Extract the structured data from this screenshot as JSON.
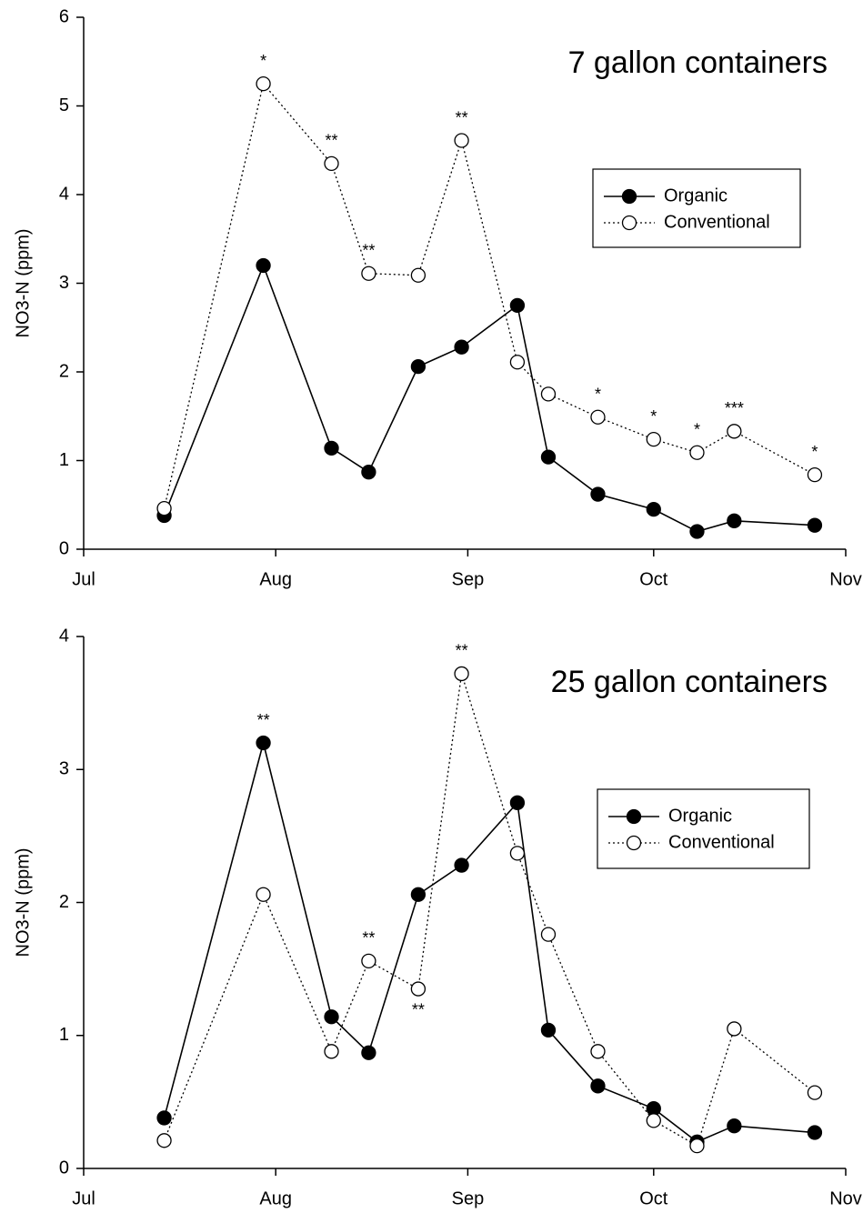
{
  "chart_data": [
    {
      "type": "line",
      "title": "7 gallon containers",
      "ylabel": "NO3-N (ppm)",
      "x": [
        13,
        29,
        40,
        46,
        54,
        61,
        70,
        75,
        83,
        92,
        99,
        105,
        118
      ],
      "series": [
        {
          "name": "Organic",
          "color": "#000000",
          "linestyle": "solid",
          "marker": "filled",
          "values": [
            0.38,
            3.2,
            1.14,
            0.87,
            2.06,
            2.28,
            2.75,
            1.04,
            0.62,
            0.45,
            0.2,
            0.32,
            0.27
          ]
        },
        {
          "name": "Conventional",
          "color": "#000000",
          "linestyle": "dotted",
          "marker": "open",
          "values": [
            0.46,
            5.25,
            4.35,
            3.11,
            3.09,
            4.61,
            2.11,
            1.75,
            1.49,
            1.24,
            1.09,
            1.33,
            0.84
          ]
        }
      ],
      "significance": [
        null,
        "*",
        "**",
        "**",
        null,
        "**",
        null,
        null,
        "*",
        "*",
        "*",
        "***",
        "*"
      ],
      "xlim": [
        0,
        123
      ],
      "xticks": [
        {
          "value": 0,
          "label": "Jul"
        },
        {
          "value": 31,
          "label": "Aug"
        },
        {
          "value": 62,
          "label": "Sep"
        },
        {
          "value": 92,
          "label": "Oct"
        },
        {
          "value": 123,
          "label": "Nov"
        }
      ],
      "ylim": [
        0,
        6
      ],
      "yticks": [
        0,
        1,
        2,
        3,
        4,
        5,
        6
      ],
      "legend": "upper right"
    },
    {
      "type": "line",
      "title": "25 gallon containers",
      "ylabel": "NO3-N (ppm)",
      "x": [
        13,
        29,
        40,
        46,
        54,
        61,
        70,
        75,
        83,
        92,
        99,
        105,
        118
      ],
      "series": [
        {
          "name": "Organic",
          "color": "#000000",
          "linestyle": "solid",
          "marker": "filled",
          "values": [
            0.38,
            3.2,
            1.14,
            0.87,
            2.06,
            2.28,
            2.75,
            1.04,
            0.62,
            0.45,
            0.2,
            0.32,
            0.27
          ]
        },
        {
          "name": "Conventional",
          "color": "#000000",
          "linestyle": "dotted",
          "marker": "open",
          "values": [
            0.21,
            2.06,
            0.88,
            1.56,
            1.35,
            3.72,
            2.37,
            1.76,
            0.88,
            0.36,
            0.17,
            1.05,
            0.57
          ]
        }
      ],
      "significance": [
        null,
        "**",
        null,
        "**",
        {
          "label": "**",
          "placement": "below"
        },
        "**",
        null,
        null,
        null,
        null,
        null,
        null,
        null
      ],
      "xlim": [
        0,
        123
      ],
      "xticks": [
        {
          "value": 0,
          "label": "Jul"
        },
        {
          "value": 31,
          "label": "Aug"
        },
        {
          "value": 62,
          "label": "Sep"
        },
        {
          "value": 92,
          "label": "Oct"
        },
        {
          "value": 123,
          "label": "Nov"
        }
      ],
      "ylim": [
        0,
        4
      ],
      "yticks": [
        0,
        1,
        2,
        3,
        4
      ],
      "legend": "upper right"
    }
  ]
}
